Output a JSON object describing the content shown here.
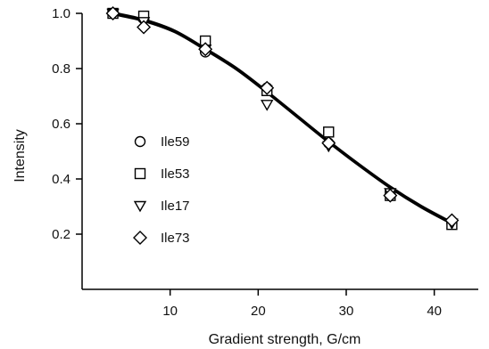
{
  "chart_data": {
    "type": "scatter",
    "title": "",
    "xlabel": "Gradient strength, G/cm",
    "ylabel": "Intensity",
    "xlim": [
      0,
      45
    ],
    "ylim": [
      0,
      1.0
    ],
    "xticks": [
      10,
      20,
      30,
      40
    ],
    "xtick_labels": [
      "10",
      "20",
      "30",
      "40"
    ],
    "yticks": [
      0.2,
      0.4,
      0.6,
      0.8,
      1.0
    ],
    "ytick_labels": [
      "0.2",
      "0.4",
      "0.6",
      "0.8",
      "1.0"
    ],
    "grid": false,
    "legend_position": "center-left",
    "x": [
      3.5,
      7,
      14,
      21,
      28,
      35,
      42
    ],
    "series": [
      {
        "name": "Ile59",
        "marker": "circle",
        "values": [
          1.0,
          0.98,
          0.86,
          0.73,
          0.53,
          0.34,
          0.24
        ]
      },
      {
        "name": "Ile53",
        "marker": "square",
        "values": [
          1.0,
          0.99,
          0.9,
          0.72,
          0.57,
          0.34,
          0.235
        ]
      },
      {
        "name": "Ile17",
        "marker": "triangle-down",
        "values": [
          1.0,
          0.97,
          0.87,
          0.67,
          0.52,
          0.35,
          0.24
        ]
      },
      {
        "name": "Ile73",
        "marker": "diamond",
        "values": [
          1.0,
          0.95,
          0.87,
          0.73,
          0.53,
          0.34,
          0.25
        ]
      }
    ],
    "fit_curve": {
      "x": [
        3.5,
        7,
        10.5,
        14,
        17.5,
        21,
        24.5,
        28,
        31.5,
        35,
        38.5,
        42
      ],
      "y": [
        1.0,
        0.975,
        0.935,
        0.87,
        0.8,
        0.715,
        0.625,
        0.535,
        0.45,
        0.37,
        0.3,
        0.24
      ]
    },
    "colors": {
      "marker_stroke": "#000000",
      "fit_line": "#000000"
    }
  }
}
